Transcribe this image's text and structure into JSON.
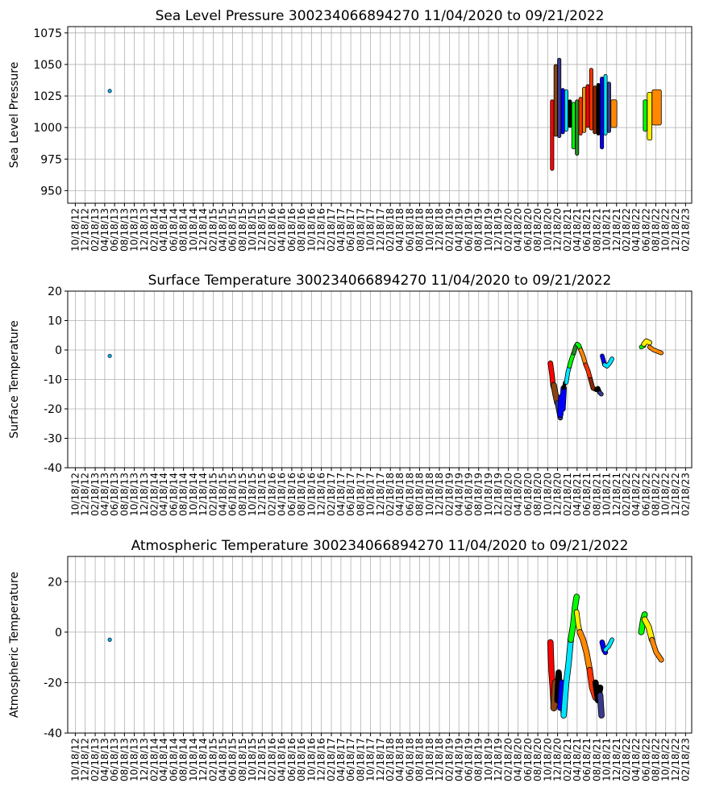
{
  "chart_data": [
    {
      "type": "scatter",
      "title": "Sea Level Pressure 300234066894270  11/04/2020 to 09/21/2022",
      "xlabel": "",
      "ylabel": "Sea Level Pressure",
      "ylim": [
        940,
        1080
      ],
      "yticks": [
        950,
        975,
        1000,
        1025,
        1050,
        1075
      ],
      "grid": true,
      "stray_point": {
        "x": "2013-05-19",
        "y": 1029
      },
      "bands": [
        {
          "start": "2020-11-04",
          "end": "2020-11-25",
          "color": "#ff0000",
          "y_low": 966,
          "y_high": 1022
        },
        {
          "start": "2020-11-26",
          "end": "2020-12-17",
          "color": "#8b4513",
          "y_low": 993,
          "y_high": 1050
        },
        {
          "start": "2020-12-18",
          "end": "2021-01-08",
          "color": "#3a3a8c",
          "y_low": 992,
          "y_high": 1055
        },
        {
          "start": "2021-01-09",
          "end": "2021-01-30",
          "color": "#0000ff",
          "y_low": 995,
          "y_high": 1031
        },
        {
          "start": "2021-01-31",
          "end": "2021-02-21",
          "color": "#00e5ff",
          "y_low": 997,
          "y_high": 1030
        },
        {
          "start": "2021-02-22",
          "end": "2021-03-15",
          "color": "#000000",
          "y_low": 1000,
          "y_high": 1022
        },
        {
          "start": "2021-03-16",
          "end": "2021-04-06",
          "color": "#00ff00",
          "y_low": 983,
          "y_high": 1020
        },
        {
          "start": "2021-04-07",
          "end": "2021-04-28",
          "color": "#228b22",
          "y_low": 978,
          "y_high": 1022
        },
        {
          "start": "2021-04-29",
          "end": "2021-05-20",
          "color": "#ff3300",
          "y_low": 994,
          "y_high": 1024
        },
        {
          "start": "2021-05-21",
          "end": "2021-06-11",
          "color": "#ff8800",
          "y_low": 996,
          "y_high": 1032
        },
        {
          "start": "2021-06-12",
          "end": "2021-07-03",
          "color": "#ff0000",
          "y_low": 1000,
          "y_high": 1034
        },
        {
          "start": "2021-07-04",
          "end": "2021-07-25",
          "color": "#ff3300",
          "y_low": 998,
          "y_high": 1047
        },
        {
          "start": "2021-07-26",
          "end": "2021-08-16",
          "color": "#8b2500",
          "y_low": 995,
          "y_high": 1033
        },
        {
          "start": "2021-08-17",
          "end": "2021-09-07",
          "color": "#000000",
          "y_low": 994,
          "y_high": 1035
        },
        {
          "start": "2021-09-08",
          "end": "2021-09-29",
          "color": "#0000ff",
          "y_low": 983,
          "y_high": 1040
        },
        {
          "start": "2021-09-30",
          "end": "2021-10-21",
          "color": "#00e5ff",
          "y_low": 994,
          "y_high": 1042
        },
        {
          "start": "2021-10-22",
          "end": "2021-11-12",
          "color": "#3a3a8c",
          "y_low": 996,
          "y_high": 1036
        },
        {
          "start": "2021-11-13",
          "end": "2021-12-20",
          "color": "#ff8800",
          "y_low": 1000,
          "y_high": 1022
        },
        {
          "start": "2022-06-01",
          "end": "2022-06-25",
          "color": "#00ff00",
          "y_low": 997,
          "y_high": 1022
        },
        {
          "start": "2022-06-26",
          "end": "2022-07-25",
          "color": "#ffee00",
          "y_low": 990,
          "y_high": 1028
        },
        {
          "start": "2022-07-26",
          "end": "2022-09-21",
          "color": "#ff8800",
          "y_low": 1002,
          "y_high": 1030
        }
      ]
    },
    {
      "type": "line",
      "title": "Surface Temperature 300234066894270  11/04/2020 to 09/21/2022",
      "xlabel": "",
      "ylabel": "Surface Temperature",
      "ylim": [
        -40,
        20
      ],
      "yticks": [
        -40,
        -30,
        -20,
        -10,
        0,
        10,
        20
      ],
      "grid": true,
      "stray_point": {
        "x": "2013-05-19",
        "y": -2
      },
      "series": [
        {
          "color": "#ff0000",
          "width": 5,
          "points": [
            [
              "2020-11-04",
              -4.5
            ],
            [
              "2020-11-10",
              -7
            ],
            [
              "2020-11-15",
              -9
            ],
            [
              "2020-11-20",
              -12
            ],
            [
              "2020-11-25",
              -13
            ]
          ]
        },
        {
          "color": "#8b4513",
          "width": 6,
          "points": [
            [
              "2020-11-25",
              -12
            ],
            [
              "2020-12-05",
              -15
            ],
            [
              "2020-12-17",
              -18
            ]
          ]
        },
        {
          "color": "#3a3a8c",
          "width": 5,
          "points": [
            [
              "2020-12-17",
              -18
            ],
            [
              "2020-12-25",
              -20
            ],
            [
              "2021-01-04",
              -23
            ]
          ]
        },
        {
          "color": "#0000ff",
          "width": 6,
          "points": [
            [
              "2021-01-04",
              -22
            ],
            [
              "2021-01-10",
              -16
            ],
            [
              "2021-01-18",
              -20
            ],
            [
              "2021-01-25",
              -13
            ]
          ]
        },
        {
          "color": "#000000",
          "width": 3,
          "points": [
            [
              "2021-01-25",
              -13
            ],
            [
              "2021-02-02",
              -11
            ],
            [
              "2021-02-10",
              -11
            ]
          ]
        },
        {
          "color": "#00e5ff",
          "width": 4,
          "points": [
            [
              "2021-02-10",
              -11
            ],
            [
              "2021-02-20",
              -7.5
            ],
            [
              "2021-03-02",
              -5.5
            ]
          ]
        },
        {
          "color": "#00ff00",
          "width": 4,
          "points": [
            [
              "2021-03-02",
              -5.5
            ],
            [
              "2021-03-15",
              -3
            ],
            [
              "2021-03-28",
              -1
            ]
          ]
        },
        {
          "color": "#228b22",
          "width": 4,
          "points": [
            [
              "2021-03-28",
              -1
            ],
            [
              "2021-04-08",
              1
            ],
            [
              "2021-04-18",
              2
            ]
          ]
        },
        {
          "color": "#00ff00",
          "width": 4,
          "points": [
            [
              "2021-04-18",
              2
            ],
            [
              "2021-04-30",
              1.5
            ],
            [
              "2021-05-10",
              0
            ]
          ]
        },
        {
          "color": "#ff8800",
          "width": 4,
          "points": [
            [
              "2021-05-10",
              0
            ],
            [
              "2021-05-25",
              -2
            ],
            [
              "2021-06-10",
              -5
            ]
          ]
        },
        {
          "color": "#ff3300",
          "width": 4,
          "points": [
            [
              "2021-06-10",
              -5
            ],
            [
              "2021-06-25",
              -7
            ],
            [
              "2021-07-10",
              -10
            ]
          ]
        },
        {
          "color": "#8b2500",
          "width": 4,
          "points": [
            [
              "2021-07-10",
              -10
            ],
            [
              "2021-07-25",
              -13
            ],
            [
              "2021-08-15",
              -13.5
            ]
          ]
        },
        {
          "color": "#000000",
          "width": 4,
          "points": [
            [
              "2021-08-15",
              -13.5
            ],
            [
              "2021-08-25",
              -13
            ],
            [
              "2021-09-05",
              -14.5
            ]
          ]
        },
        {
          "color": "#3a3a8c",
          "width": 4,
          "points": [
            [
              "2021-09-05",
              -14.5
            ],
            [
              "2021-09-15",
              -15
            ]
          ]
        },
        {
          "color": "#0000ff",
          "width": 4,
          "points": [
            [
              "2021-09-20",
              -2
            ],
            [
              "2021-09-28",
              -3.5
            ],
            [
              "2021-10-05",
              -5
            ]
          ]
        },
        {
          "color": "#00e5ff",
          "width": 4,
          "points": [
            [
              "2021-10-05",
              -5
            ],
            [
              "2021-10-20",
              -5.5
            ],
            [
              "2021-11-05",
              -4.5
            ],
            [
              "2021-11-20",
              -3
            ]
          ]
        },
        {
          "color": "#00ff00",
          "width": 4,
          "points": [
            [
              "2022-05-20",
              1
            ],
            [
              "2022-06-05",
              1.5
            ]
          ]
        },
        {
          "color": "#ffee00",
          "width": 5,
          "points": [
            [
              "2022-06-05",
              2
            ],
            [
              "2022-06-20",
              3
            ],
            [
              "2022-07-10",
              2.5
            ]
          ]
        },
        {
          "color": "#ff8800",
          "width": 4,
          "points": [
            [
              "2022-07-10",
              1
            ],
            [
              "2022-08-05",
              0
            ],
            [
              "2022-09-21",
              -1
            ]
          ]
        }
      ]
    },
    {
      "type": "line",
      "title": "Atmospheric Temperature 300234066894270  11/04/2020 to 09/21/2022",
      "xlabel": "",
      "ylabel": "Atmospheric Temperature",
      "ylim": [
        -40,
        30
      ],
      "yticks": [
        -40,
        -20,
        0,
        20
      ],
      "grid": true,
      "stray_point": {
        "x": "2013-05-19",
        "y": -3
      },
      "series": [
        {
          "color": "#ff0000",
          "width": 6,
          "points": [
            [
              "2020-11-04",
              -4
            ],
            [
              "2020-11-10",
              -15
            ],
            [
              "2020-11-18",
              -22
            ],
            [
              "2020-11-25",
              -30
            ]
          ]
        },
        {
          "color": "#8b4513",
          "width": 7,
          "points": [
            [
              "2020-11-25",
              -30
            ],
            [
              "2020-12-05",
              -20
            ],
            [
              "2020-12-17",
              -28
            ]
          ]
        },
        {
          "color": "#000000",
          "width": 6,
          "points": [
            [
              "2020-12-17",
              -27
            ],
            [
              "2020-12-25",
              -16
            ],
            [
              "2021-01-04",
              -28
            ]
          ]
        },
        {
          "color": "#0000ff",
          "width": 6,
          "points": [
            [
              "2021-01-04",
              -30
            ],
            [
              "2021-01-14",
              -20
            ],
            [
              "2021-01-25",
              -32
            ]
          ]
        },
        {
          "color": "#00e5ff",
          "width": 6,
          "points": [
            [
              "2021-01-25",
              -33
            ],
            [
              "2021-02-10",
              -20
            ],
            [
              "2021-02-25",
              -12
            ],
            [
              "2021-03-10",
              -3
            ]
          ]
        },
        {
          "color": "#00ff00",
          "width": 6,
          "points": [
            [
              "2021-03-10",
              -3
            ],
            [
              "2021-03-25",
              3
            ],
            [
              "2021-04-05",
              10
            ],
            [
              "2021-04-15",
              14
            ]
          ]
        },
        {
          "color": "#ffee00",
          "width": 5,
          "points": [
            [
              "2021-04-15",
              8
            ],
            [
              "2021-04-25",
              3
            ],
            [
              "2021-05-05",
              0
            ]
          ]
        },
        {
          "color": "#ff8800",
          "width": 6,
          "points": [
            [
              "2021-05-05",
              0
            ],
            [
              "2021-05-25",
              -3
            ],
            [
              "2021-06-15",
              -8
            ],
            [
              "2021-07-05",
              -15
            ]
          ]
        },
        {
          "color": "#ff3300",
          "width": 6,
          "points": [
            [
              "2021-07-05",
              -15
            ],
            [
              "2021-07-20",
              -22
            ],
            [
              "2021-08-10",
              -26
            ]
          ]
        },
        {
          "color": "#000000",
          "width": 6,
          "points": [
            [
              "2021-08-10",
              -20
            ],
            [
              "2021-08-25",
              -27
            ],
            [
              "2021-09-08",
              -22
            ]
          ]
        },
        {
          "color": "#3a3a8c",
          "width": 6,
          "points": [
            [
              "2021-09-08",
              -25
            ],
            [
              "2021-09-16",
              -33
            ]
          ]
        },
        {
          "color": "#0000ff",
          "width": 5,
          "points": [
            [
              "2021-09-20",
              -4
            ],
            [
              "2021-10-01",
              -7
            ],
            [
              "2021-10-10",
              -8
            ]
          ]
        },
        {
          "color": "#00e5ff",
          "width": 4,
          "points": [
            [
              "2021-10-10",
              -7
            ],
            [
              "2021-11-01",
              -5.5
            ],
            [
              "2021-11-20",
              -3
            ]
          ]
        },
        {
          "color": "#00ff00",
          "width": 6,
          "points": [
            [
              "2022-05-20",
              0
            ],
            [
              "2022-06-01",
              5
            ],
            [
              "2022-06-10",
              7
            ]
          ]
        },
        {
          "color": "#ffee00",
          "width": 6,
          "points": [
            [
              "2022-06-10",
              5
            ],
            [
              "2022-07-05",
              2
            ],
            [
              "2022-07-25",
              -3
            ]
          ]
        },
        {
          "color": "#ff8800",
          "width": 5,
          "points": [
            [
              "2022-07-25",
              -3
            ],
            [
              "2022-08-20",
              -8
            ],
            [
              "2022-09-21",
              -11
            ]
          ]
        }
      ]
    }
  ]
}
